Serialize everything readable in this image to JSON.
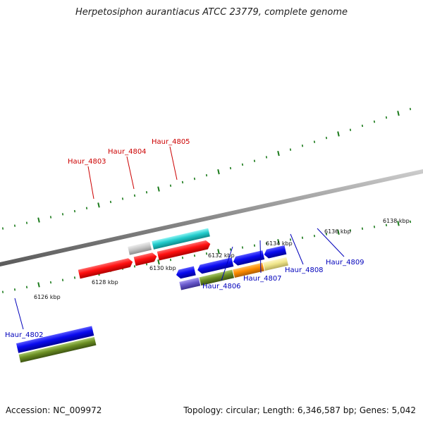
{
  "title": "Herpetosiphon aurantiacus ATCC 23779, complete genome",
  "footer": {
    "accession": "Accession: NC_009972",
    "summary": "Topology: circular; Length: 6,346,587 bp; Genes: 5,042"
  },
  "colors": {
    "forward_label": "#cc0000",
    "reverse_label": "#0000bb",
    "tick": "#1a7a1a",
    "backbone": "#888888"
  },
  "scale_labels": [
    {
      "text": "6126 kbp",
      "kbp": 6126
    },
    {
      "text": "6128 kbp",
      "kbp": 6128
    },
    {
      "text": "6130 kbp",
      "kbp": 6130
    },
    {
      "text": "6132 kbp",
      "kbp": 6132
    },
    {
      "text": "6134 kbp",
      "kbp": 6134
    },
    {
      "text": "6136 kbp",
      "kbp": 6136
    },
    {
      "text": "6138 kbp",
      "kbp": 6138
    }
  ],
  "genes": [
    {
      "name": "Haur_4802",
      "strand": "reverse",
      "labeled": true
    },
    {
      "name": "Haur_4803",
      "strand": "forward",
      "labeled": true
    },
    {
      "name": "Haur_4804",
      "strand": "forward",
      "labeled": true
    },
    {
      "name": "Haur_4805",
      "strand": "forward",
      "labeled": true
    },
    {
      "name": "Haur_4806",
      "strand": "reverse",
      "labeled": true
    },
    {
      "name": "Haur_4807",
      "strand": "reverse",
      "labeled": true
    },
    {
      "name": "Haur_4808",
      "strand": "reverse",
      "labeled": true
    },
    {
      "name": "Haur_4809",
      "strand": "reverse",
      "labeled": true
    }
  ]
}
